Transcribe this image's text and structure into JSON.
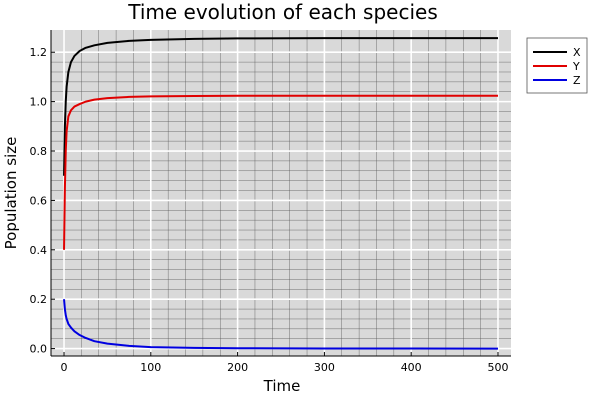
{
  "chart_data": {
    "type": "line",
    "title": "Time evolution of each species",
    "xlabel": "Time",
    "ylabel": "Population size",
    "xlim": [
      -15,
      515
    ],
    "ylim": [
      -0.03,
      1.29
    ],
    "xticks": [
      0,
      100,
      200,
      300,
      400,
      500
    ],
    "xtick_labels": [
      "0",
      "100",
      "200",
      "300",
      "400",
      "500"
    ],
    "yticks": [
      0.0,
      0.2,
      0.4,
      0.6,
      0.8,
      1.0,
      1.2
    ],
    "ytick_labels": [
      "0.0",
      "0.2",
      "0.4",
      "0.6",
      "0.8",
      "1.0",
      "1.2"
    ],
    "grid": true,
    "minor_grid": true,
    "legend_position": "outer-top-right",
    "plot_background": "#d9d9d9",
    "series": [
      {
        "name": "X",
        "color": "#000000",
        "x": [
          0,
          1,
          2,
          3,
          5,
          8,
          12,
          18,
          25,
          35,
          50,
          75,
          100,
          150,
          200,
          300,
          400,
          500
        ],
        "y": [
          0.7,
          0.9,
          1.0,
          1.06,
          1.12,
          1.16,
          1.185,
          1.205,
          1.218,
          1.228,
          1.238,
          1.246,
          1.25,
          1.254,
          1.256,
          1.257,
          1.257,
          1.257
        ]
      },
      {
        "name": "Y",
        "color": "#e00000",
        "x": [
          0,
          1,
          2,
          3,
          5,
          8,
          12,
          18,
          25,
          35,
          50,
          75,
          100,
          150,
          200,
          300,
          400,
          500
        ],
        "y": [
          0.4,
          0.65,
          0.8,
          0.88,
          0.94,
          0.965,
          0.98,
          0.99,
          1.0,
          1.008,
          1.014,
          1.019,
          1.021,
          1.023,
          1.024,
          1.024,
          1.024,
          1.024
        ]
      },
      {
        "name": "Z",
        "color": "#0000e0",
        "x": [
          0,
          1,
          2,
          3,
          5,
          8,
          12,
          18,
          25,
          35,
          50,
          75,
          100,
          150,
          200,
          300,
          400,
          500
        ],
        "y": [
          0.2,
          0.16,
          0.135,
          0.12,
          0.1,
          0.085,
          0.07,
          0.055,
          0.043,
          0.03,
          0.02,
          0.011,
          0.006,
          0.003,
          0.0015,
          0.0005,
          0.0002,
          0.0001
        ]
      }
    ]
  }
}
